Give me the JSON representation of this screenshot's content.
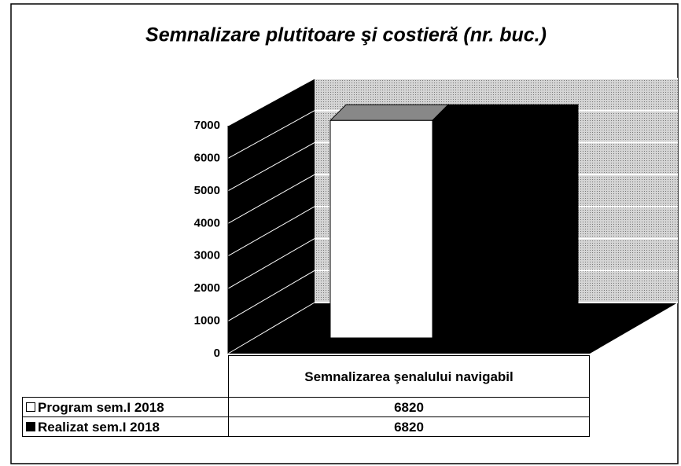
{
  "chart_data": {
    "type": "bar3d",
    "title": "Semnalizare plutitoare şi costieră  (nr. buc.)",
    "categories": [
      "Semnalizarea şenalului navigabil"
    ],
    "series": [
      {
        "name": "Program sem.I 2018",
        "color": "#ffffff",
        "values": [
          6820
        ]
      },
      {
        "name": "Realizat sem.I 2018",
        "color": "#000000",
        "values": [
          6820
        ]
      }
    ],
    "ylim": [
      0,
      7000
    ],
    "yticks": [
      0,
      1000,
      2000,
      3000,
      4000,
      5000,
      6000,
      7000
    ],
    "grid": true,
    "legend": "table"
  }
}
